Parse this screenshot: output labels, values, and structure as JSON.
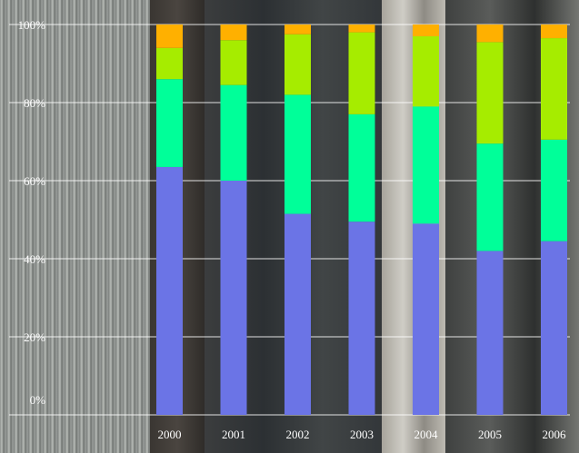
{
  "chart_data": {
    "type": "bar",
    "stacked": true,
    "categories": [
      "2000",
      "2001",
      "2002",
      "2003",
      "2004",
      "2005",
      "2006"
    ],
    "series": [
      {
        "values": [
          63.5,
          60,
          51.5,
          49.5,
          49,
          42,
          44.5
        ]
      },
      {
        "values": [
          22.5,
          24.5,
          30.5,
          27.5,
          30,
          27.5,
          26
        ]
      },
      {
        "values": [
          8,
          11.5,
          15.5,
          21,
          18,
          26,
          26
        ]
      },
      {
        "values": [
          6,
          4,
          2.5,
          2,
          3,
          4.5,
          3.5
        ]
      }
    ],
    "colors": [
      "#6b74e6",
      "#00ff99",
      "#a6ec00",
      "#ffb000"
    ],
    "ylim": [
      0,
      100
    ],
    "yticks": [
      "0%",
      "20%",
      "40%",
      "60%",
      "80%",
      "100%"
    ],
    "ytick_values": [
      0,
      20,
      40,
      60,
      80,
      100
    ],
    "grid": true,
    "gridline_color": "#ffffff",
    "label_color": "#ffffff"
  }
}
